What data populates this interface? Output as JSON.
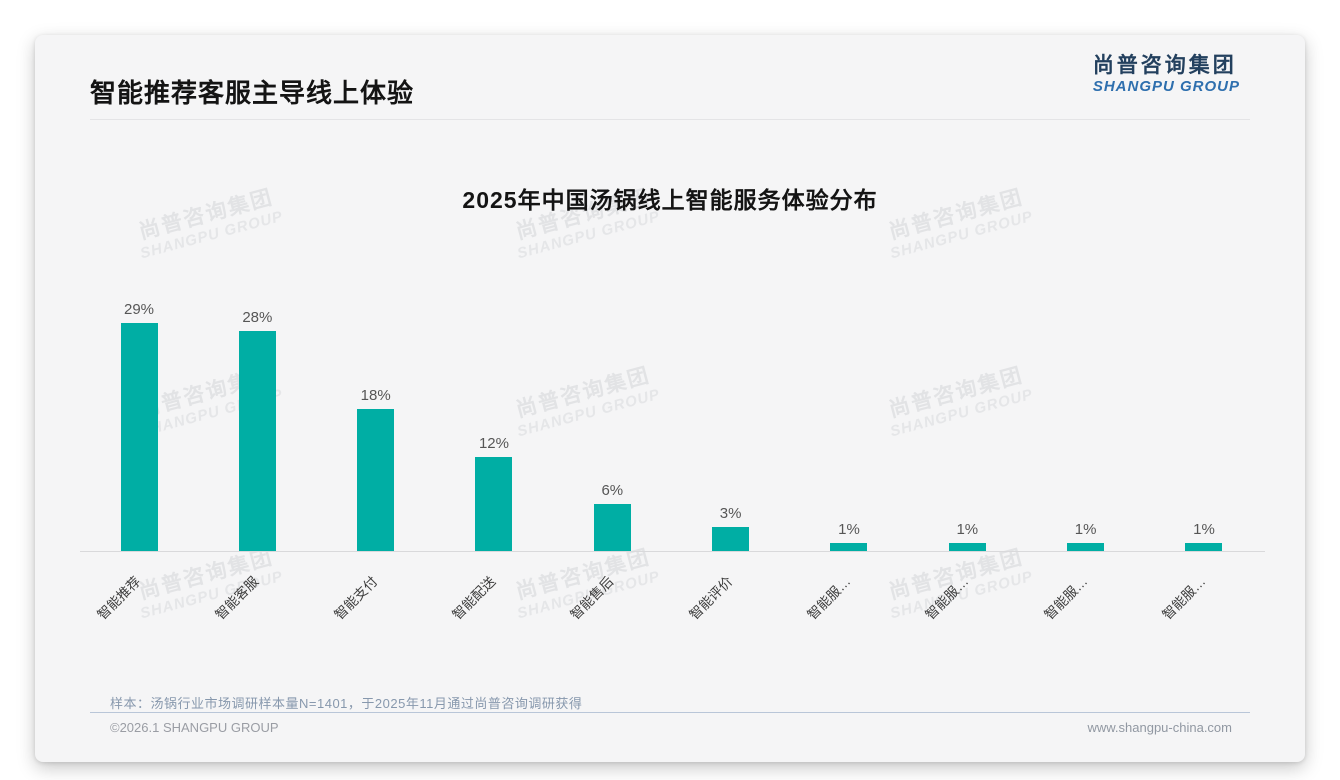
{
  "page": {
    "title": "智能推荐客服主导线上体验",
    "logo": {
      "cn": "尚普咨询集团",
      "en": "SHANGPU GROUP"
    },
    "watermark": {
      "cn": "尚普咨询集团",
      "en": "SHANGPU GROUP"
    },
    "footer": {
      "note": "样本：汤锅行业市场调研样本量N=1401，于2025年11月通过尚普咨询调研获得",
      "copyright": "©2026.1 SHANGPU GROUP",
      "website": "www.shangpu-china.com"
    }
  },
  "chart_data": {
    "type": "bar",
    "title": "2025年中国汤锅线上智能服务体验分布",
    "categories": [
      "智能推荐",
      "智能客服",
      "智能支付",
      "智能配送",
      "智能售后",
      "智能评价",
      "智能服…",
      "智能服…",
      "智能服…",
      "智能服…"
    ],
    "values": [
      29,
      28,
      18,
      12,
      6,
      3,
      1,
      1,
      1,
      1
    ],
    "value_labels": [
      "29%",
      "28%",
      "18%",
      "12%",
      "6%",
      "3%",
      "1%",
      "1%",
      "1%",
      "1%"
    ],
    "bar_color": "#00AEA4",
    "xlabel": "",
    "ylabel": "",
    "ylim": [
      0,
      30
    ],
    "grid": false,
    "legend": "none",
    "x_tick_rotation_deg": 45
  }
}
